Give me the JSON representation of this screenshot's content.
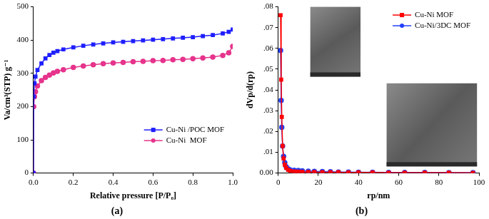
{
  "chart_data": [
    {
      "type": "line",
      "title": "(a)",
      "x_label": "Relative pressure [P/P₀]",
      "y_label": "Va/cm³(STP) g⁻¹",
      "x": [
        0,
        0.001,
        0.005,
        0.01,
        0.02,
        0.04,
        0.06,
        0.08,
        0.1,
        0.12,
        0.15,
        0.2,
        0.25,
        0.3,
        0.35,
        0.4,
        0.45,
        0.5,
        0.55,
        0.6,
        0.65,
        0.7,
        0.75,
        0.8,
        0.85,
        0.9,
        0.95,
        0.98,
        1.0
      ],
      "series": [
        {
          "name": "Cu-Ni /POC MOF",
          "color": "#1f1fff",
          "marker": "square",
          "values": [
            0,
            230,
            270,
            290,
            310,
            330,
            345,
            355,
            362,
            367,
            372,
            378,
            383,
            387,
            390,
            393,
            395,
            397,
            399,
            401,
            403,
            405,
            407,
            409,
            412,
            415,
            420,
            425,
            432
          ]
        },
        {
          "name": "Cu-Ni  MOF",
          "color": "#e6338c",
          "marker": "circle",
          "values": [
            0,
            200,
            230,
            245,
            262,
            278,
            288,
            295,
            301,
            306,
            311,
            318,
            322,
            326,
            329,
            331,
            333,
            335,
            336,
            338,
            339,
            341,
            342,
            344,
            346,
            349,
            354,
            362,
            381
          ]
        }
      ],
      "xlim": [
        0,
        1.0
      ],
      "xticks": [
        {
          "value": 0,
          "label": "0.0"
        },
        0.2,
        0.4,
        0.6,
        0.8,
        {
          "value": 1,
          "label": "1.0"
        }
      ],
      "ylim": [
        0,
        500
      ],
      "yticks": [
        0,
        100,
        200,
        300,
        400,
        500
      ],
      "grid": false,
      "legend": "lower right"
    },
    {
      "type": "line",
      "title": "(b)",
      "x_label": "rp/nm",
      "y_label": "dVp/d(rp)",
      "x": [
        1.2,
        1.5,
        1.8,
        2.2,
        2.7,
        3.3,
        4,
        5,
        6,
        8,
        10,
        12,
        15,
        18,
        22,
        26,
        30,
        35,
        40,
        47,
        55,
        63,
        73,
        85,
        97
      ],
      "series": [
        {
          "name": "Cu-Ni MOF",
          "color": "#ff0000",
          "marker": "square",
          "values": [
            0.076,
            0.045,
            0.027,
            0.013,
            0.007,
            0.004,
            0.0025,
            0.0015,
            0.001,
            0.0008,
            0.0007,
            0.0006,
            0.0005,
            0.0005,
            0.0004,
            0.0004,
            0.0004,
            0.0003,
            0.0003,
            0.0003,
            0.0002,
            0.0002,
            0.0002,
            0.0002,
            0.0001
          ]
        },
        {
          "name": "Cu-Ni/3DC MOF",
          "color": "#1f3fff",
          "marker": "circle",
          "values": [
            0.059,
            0.035,
            0.022,
            0.013,
            0.008,
            0.005,
            0.003,
            0.002,
            0.0015,
            0.0013,
            0.0012,
            0.0011,
            0.0009,
            0.0008,
            0.0007,
            0.0006,
            0.0005,
            0.0005,
            0.0004,
            0.0004,
            0.0003,
            0.0003,
            0.0003,
            0.0002,
            0.0002
          ]
        }
      ],
      "xlim": [
        0,
        100
      ],
      "xticks": [
        0,
        20,
        40,
        60,
        80,
        100
      ],
      "ylim": [
        0,
        0.08
      ],
      "yticks": [
        {
          "value": 0,
          "label": "0.00"
        },
        {
          "value": 0.01,
          "label": ".01"
        },
        {
          "value": 0.02,
          "label": ".02"
        },
        {
          "value": 0.03,
          "label": ".03"
        },
        {
          "value": 0.04,
          "label": ".04"
        },
        {
          "value": 0.05,
          "label": ".05"
        },
        {
          "value": 0.06,
          "label": ".06"
        },
        {
          "value": 0.07,
          "label": ".07"
        },
        {
          "value": 0.08,
          "label": ".08"
        }
      ],
      "grid": false,
      "legend": "upper right"
    }
  ]
}
